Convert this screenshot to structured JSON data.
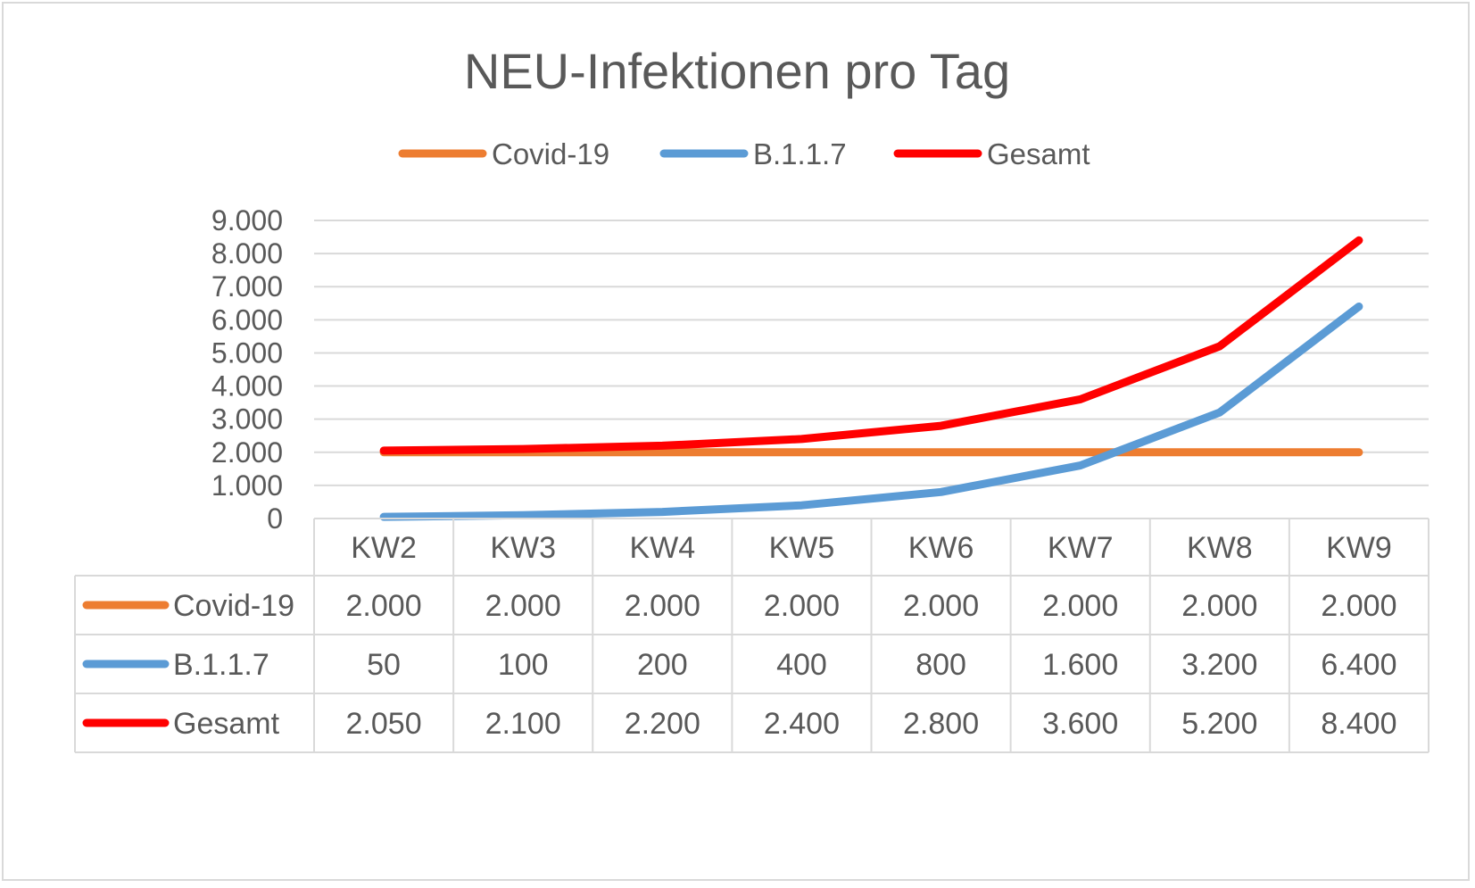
{
  "chart_data": {
    "type": "line",
    "title": "NEU-Infektionen pro Tag",
    "categories": [
      "KW2",
      "KW3",
      "KW4",
      "KW5",
      "KW6",
      "KW7",
      "KW8",
      "KW9"
    ],
    "series": [
      {
        "name": "Covid-19",
        "color": "#ed7d31",
        "values": [
          2000,
          2000,
          2000,
          2000,
          2000,
          2000,
          2000,
          2000
        ],
        "labels": [
          "2.000",
          "2.000",
          "2.000",
          "2.000",
          "2.000",
          "2.000",
          "2.000",
          "2.000"
        ]
      },
      {
        "name": "B.1.1.7",
        "color": "#5b9bd5",
        "values": [
          50,
          100,
          200,
          400,
          800,
          1600,
          3200,
          6400
        ],
        "labels": [
          "50",
          "100",
          "200",
          "400",
          "800",
          "1.600",
          "3.200",
          "6.400"
        ]
      },
      {
        "name": "Gesamt",
        "color": "#ff0000",
        "values": [
          2050,
          2100,
          2200,
          2400,
          2800,
          3600,
          5200,
          8400
        ],
        "labels": [
          "2.050",
          "2.100",
          "2.200",
          "2.400",
          "2.800",
          "3.600",
          "5.200",
          "8.400"
        ]
      }
    ],
    "ylim": [
      0,
      9000
    ],
    "yticks": [
      0,
      1000,
      2000,
      3000,
      4000,
      5000,
      6000,
      7000,
      8000,
      9000
    ],
    "ytick_labels": [
      "0",
      "1.000",
      "2.000",
      "3.000",
      "4.000",
      "5.000",
      "6.000",
      "7.000",
      "8.000",
      "9.000"
    ],
    "grid": true,
    "legend_position": "top",
    "data_table": true
  }
}
